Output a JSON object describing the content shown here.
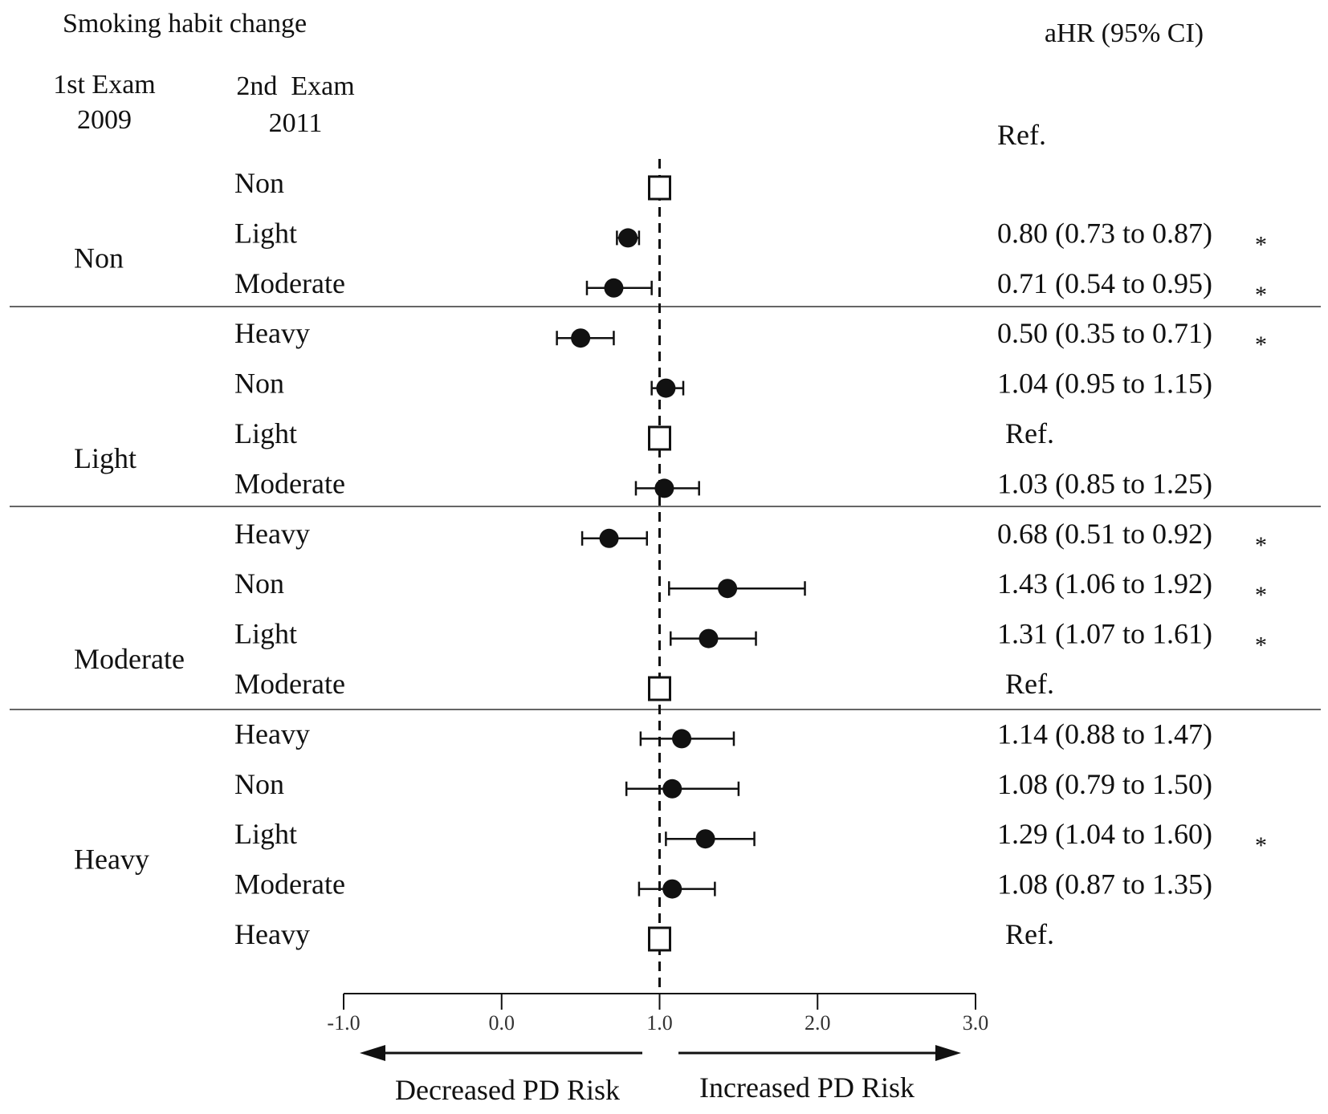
{
  "chart_data": {
    "type": "forest",
    "title": "Smoking habit change",
    "column_headers": {
      "exam1": "1st Exam",
      "exam1_year": "2009",
      "exam2": "2nd  Exam",
      "exam2_year": "2011",
      "estimate": "aHR (95% CI)"
    },
    "header_ref": "Ref.",
    "reference_value": 1.0,
    "xlim": [
      -1.0,
      3.0
    ],
    "x_ticks": [
      {
        "value": -1.0,
        "label": "-1.0"
      },
      {
        "value": 0.0,
        "label": "0.0"
      },
      {
        "value": 1.0,
        "label": "1.0"
      },
      {
        "value": 2.0,
        "label": "2.0"
      },
      {
        "value": 3.0,
        "label": "3.0"
      }
    ],
    "groups": [
      {
        "label": "Non",
        "rows": [
          {
            "second": "Non",
            "ref": true,
            "label": ""
          },
          {
            "second": "Light",
            "hr": 0.8,
            "lo": 0.73,
            "hi": 0.87,
            "label": "0.80 (0.73 to 0.87)",
            "sig": "*"
          },
          {
            "second": "Moderate",
            "hr": 0.71,
            "lo": 0.54,
            "hi": 0.95,
            "label": "0.71 (0.54 to 0.95)",
            "sig": "*"
          },
          {
            "second": "Heavy",
            "hr": 0.5,
            "lo": 0.35,
            "hi": 0.71,
            "label": "0.50 (0.35 to 0.71)",
            "sig": "*"
          }
        ]
      },
      {
        "label": "Light",
        "rows": [
          {
            "second": "Non",
            "hr": 1.04,
            "lo": 0.95,
            "hi": 1.15,
            "label": "1.04 (0.95 to 1.15)",
            "sig": ""
          },
          {
            "second": "Light",
            "ref": true,
            "label": "Ref."
          },
          {
            "second": "Moderate",
            "hr": 1.03,
            "lo": 0.85,
            "hi": 1.25,
            "label": "1.03 (0.85 to 1.25)",
            "sig": ""
          },
          {
            "second": "Heavy",
            "hr": 0.68,
            "lo": 0.51,
            "hi": 0.92,
            "label": "0.68 (0.51 to 0.92)",
            "sig": "*"
          }
        ]
      },
      {
        "label": "Moderate",
        "rows": [
          {
            "second": "Non",
            "hr": 1.43,
            "lo": 1.06,
            "hi": 1.92,
            "label": "1.43 (1.06 to 1.92)",
            "sig": "*"
          },
          {
            "second": "Light",
            "hr": 1.31,
            "lo": 1.07,
            "hi": 1.61,
            "label": "1.31 (1.07 to 1.61)",
            "sig": "*"
          },
          {
            "second": "Moderate",
            "ref": true,
            "label": "Ref."
          },
          {
            "second": "Heavy",
            "hr": 1.14,
            "lo": 0.88,
            "hi": 1.47,
            "label": "1.14 (0.88 to 1.47)",
            "sig": ""
          }
        ]
      },
      {
        "label": "Heavy",
        "rows": [
          {
            "second": "Non",
            "hr": 1.08,
            "lo": 0.79,
            "hi": 1.5,
            "label": "1.08 (0.79 to 1.50)",
            "sig": ""
          },
          {
            "second": "Light",
            "hr": 1.29,
            "lo": 1.04,
            "hi": 1.6,
            "label": "1.29 (1.04 to 1.60)",
            "sig": "*"
          },
          {
            "second": "Moderate",
            "hr": 1.08,
            "lo": 0.87,
            "hi": 1.35,
            "label": "1.08 (0.87 to 1.35)",
            "sig": ""
          },
          {
            "second": "Heavy",
            "ref": true,
            "label": "Ref."
          }
        ]
      }
    ],
    "arrows": {
      "left": "Decreased PD Risk",
      "right": "Increased PD Risk"
    }
  }
}
